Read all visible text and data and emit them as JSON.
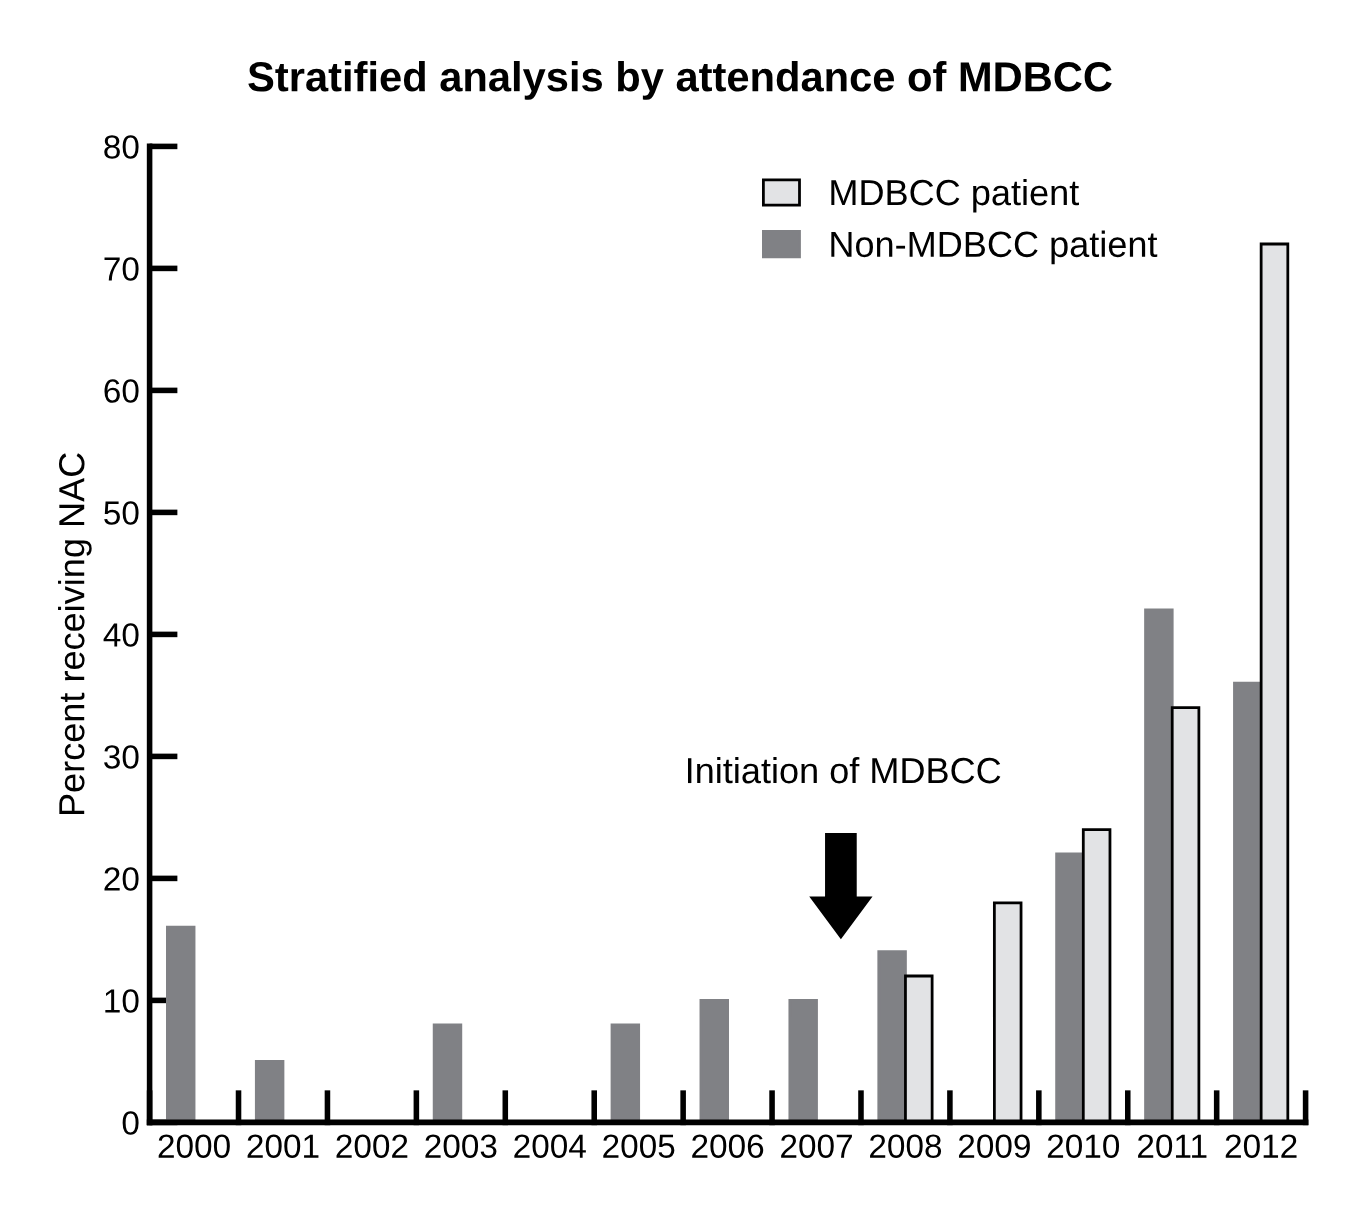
{
  "chart_data": {
    "type": "bar",
    "title": "Stratified analysis by attendance of MDBCC",
    "ylabel": "Percent receiving NAC",
    "categories": [
      "2000",
      "2001",
      "2002",
      "2003",
      "2004",
      "2005",
      "2006",
      "2007",
      "2008",
      "2009",
      "2010",
      "2011",
      "2012"
    ],
    "series": [
      {
        "name": "Non-MDBCC patient",
        "color": "#808185",
        "values": [
          16,
          5,
          0,
          8,
          0,
          8,
          10,
          10,
          14,
          0,
          22,
          42,
          36
        ]
      },
      {
        "name": "MDBCC patient",
        "color": "#e2e3e5",
        "values": [
          null,
          null,
          null,
          null,
          null,
          null,
          null,
          null,
          12,
          18,
          24,
          34,
          72
        ]
      }
    ],
    "ylim": [
      0,
      80
    ],
    "yticks": [
      0,
      10,
      20,
      30,
      40,
      50,
      60,
      70,
      80
    ],
    "grid": false,
    "legend": "top right",
    "annotations": [
      "Initiation of MDBCC"
    ]
  }
}
